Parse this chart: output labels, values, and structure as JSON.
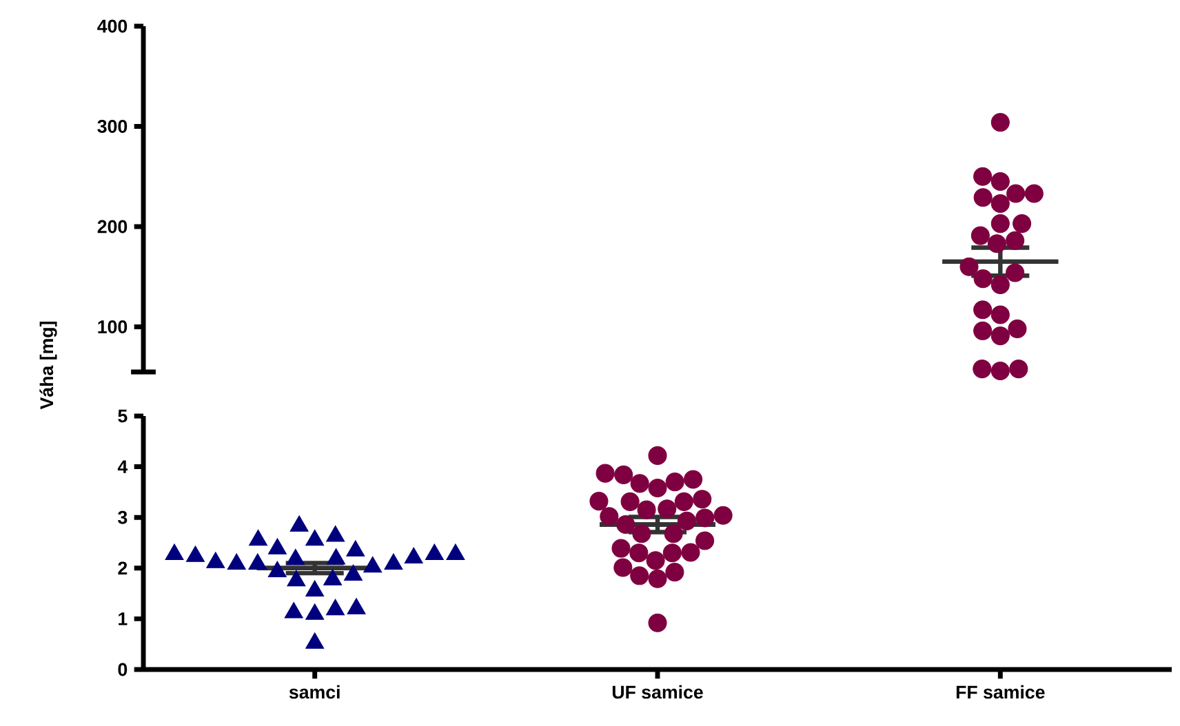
{
  "chart_data": [
    {
      "type": "scatter",
      "categories": [
        "samci",
        "UF samice",
        "FF samice"
      ],
      "ylim": [
        55,
        400
      ],
      "yticks": [
        100,
        200,
        300,
        400
      ],
      "tick_labels": "y",
      "series": [
        {
          "x": [
            "FF samice",
            "FF samice",
            "FF samice",
            "FF samice",
            "FF samice",
            "FF samice",
            "FF samice",
            "FF samice",
            "FF samice",
            "FF samice",
            "FF samice",
            "FF samice",
            "FF samice",
            "FF samice",
            "FF samice",
            "FF samice",
            "FF samice",
            "FF samice",
            "FF samice",
            "FF samice",
            "FF samice",
            "FF samice",
            "FF samice",
            "FF samice"
          ],
          "values": [
            304,
            250,
            245,
            233,
            229,
            233,
            223,
            203,
            203,
            191,
            183,
            186,
            160,
            148,
            142,
            154,
            112,
            117,
            96,
            91,
            98,
            58,
            56,
            58
          ],
          "color": "#7f0040",
          "marker": "circle"
        },
        {
          "type": "box",
          "boxes": [
            null,
            null,
            {
              "low": 151,
              "q1": 165,
              "median": 165,
              "q3": 165,
              "high": 179
            }
          ],
          "color": "#333333"
        }
      ]
    },
    {
      "type": "scatter",
      "categories": [
        "samci",
        "UF samice",
        "FF samice"
      ],
      "ylabel": "Váha [mg]",
      "ylim": [
        0,
        5
      ],
      "yticks": [
        0,
        1,
        2,
        3,
        4,
        5
      ],
      "series": [
        {
          "x": [
            "samci",
            "samci",
            "samci",
            "samci",
            "samci",
            "samci",
            "samci",
            "samci",
            "samci",
            "samci",
            "samci",
            "samci",
            "samci",
            "samci",
            "samci",
            "samci",
            "samci",
            "samci",
            "samci",
            "samci",
            "samci",
            "samci",
            "samci",
            "samci",
            "samci",
            "samci",
            "samci",
            "samci"
          ],
          "values": [
            2.83,
            2.63,
            2.55,
            2.55,
            2.23,
            2.18,
            2.11,
            2.34,
            2.27,
            2.27,
            2.27,
            2.38,
            2.17,
            2.2,
            2.08,
            2.02,
            2.08,
            2.08,
            1.86,
            1.75,
            1.77,
            1.93,
            1.55,
            1.2,
            1.12,
            1.09,
            1.18,
            0.52
          ],
          "color": "#00007f",
          "marker": "triangle"
        },
        {
          "x": [
            "UF samice",
            "UF samice",
            "UF samice",
            "UF samice",
            "UF samice",
            "UF samice",
            "UF samice",
            "UF samice",
            "UF samice",
            "UF samice",
            "UF samice",
            "UF samice",
            "UF samice",
            "UF samice",
            "UF samice",
            "UF samice",
            "UF samice",
            "UF samice",
            "UF samice",
            "UF samice",
            "UF samice",
            "UF samice",
            "UF samice",
            "UF samice",
            "UF samice",
            "UF samice",
            "UF samice",
            "UF samice",
            "UF samice",
            "UF samice",
            "UF samice"
          ],
          "values": [
            4.22,
            3.87,
            3.84,
            3.7,
            3.58,
            3.67,
            3.75,
            3.17,
            3.04,
            3.32,
            3.31,
            3.31,
            3.36,
            3.02,
            3.15,
            2.99,
            2.86,
            2.93,
            2.68,
            2.54,
            2.68,
            2.39,
            2.3,
            2.31,
            2.15,
            2.3,
            2.01,
            1.85,
            1.79,
            1.92,
            0.92
          ],
          "color": "#7f0040",
          "marker": "circle"
        },
        {
          "type": "box",
          "boxes": [
            {
              "low": 1.9,
              "q1": 2.0,
              "median": 2.0,
              "q3": 2.0,
              "high": 2.1
            },
            {
              "low": 2.71,
              "q1": 2.86,
              "median": 2.86,
              "q3": 2.86,
              "high": 3.01
            },
            null
          ],
          "color": "#333333"
        }
      ]
    }
  ]
}
